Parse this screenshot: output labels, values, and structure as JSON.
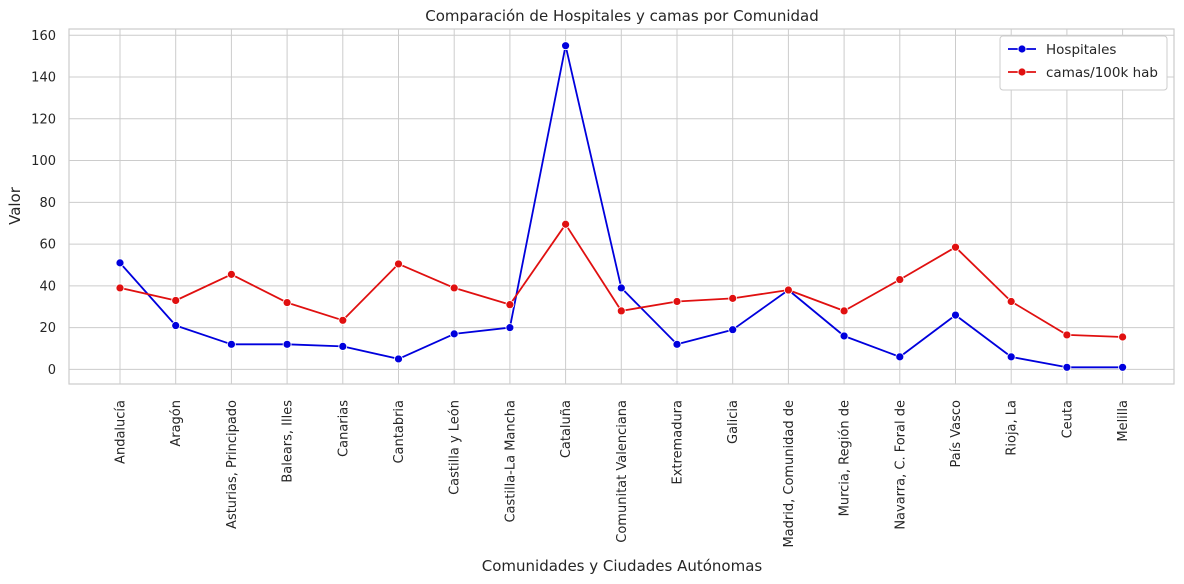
{
  "chart_data": {
    "type": "line",
    "title": "Comparación de Hospitales y camas por Comunidad",
    "xlabel": "Comunidades y Ciudades Autónomas",
    "ylabel": "Valor",
    "ylim": [
      -7,
      163
    ],
    "yticks": [
      0,
      20,
      40,
      60,
      80,
      100,
      120,
      140,
      160
    ],
    "grid": true,
    "legend_position": "top-right",
    "categories": [
      "Andalucía",
      "Aragón",
      "Asturias, Principado",
      "Balears, Illes",
      "Canarias",
      "Cantabria",
      "Castilla y León",
      "Castilla-La Mancha",
      "Cataluña",
      "Comunitat Valenciana",
      "Extremadura",
      "Galicia",
      "Madrid, Comunidad de",
      "Murcia, Región de",
      "Navarra, C. Foral de",
      "País Vasco",
      "Rioja, La",
      "Ceuta",
      "Melilla"
    ],
    "series": [
      {
        "name": "Hospitales",
        "color": "#0000dd",
        "marker": "circle",
        "values": [
          51,
          21,
          12,
          12,
          11,
          5,
          17,
          20,
          155,
          39,
          12,
          19,
          38,
          16,
          6,
          26,
          6,
          1,
          1
        ]
      },
      {
        "name": "camas/100k hab",
        "color": "#e01010",
        "marker": "circle",
        "values": [
          39,
          33,
          45.5,
          32,
          23.5,
          50.5,
          39,
          31,
          69.5,
          28,
          32.5,
          34,
          38,
          28,
          43,
          58.5,
          32.5,
          16.5,
          15.5
        ]
      }
    ]
  }
}
